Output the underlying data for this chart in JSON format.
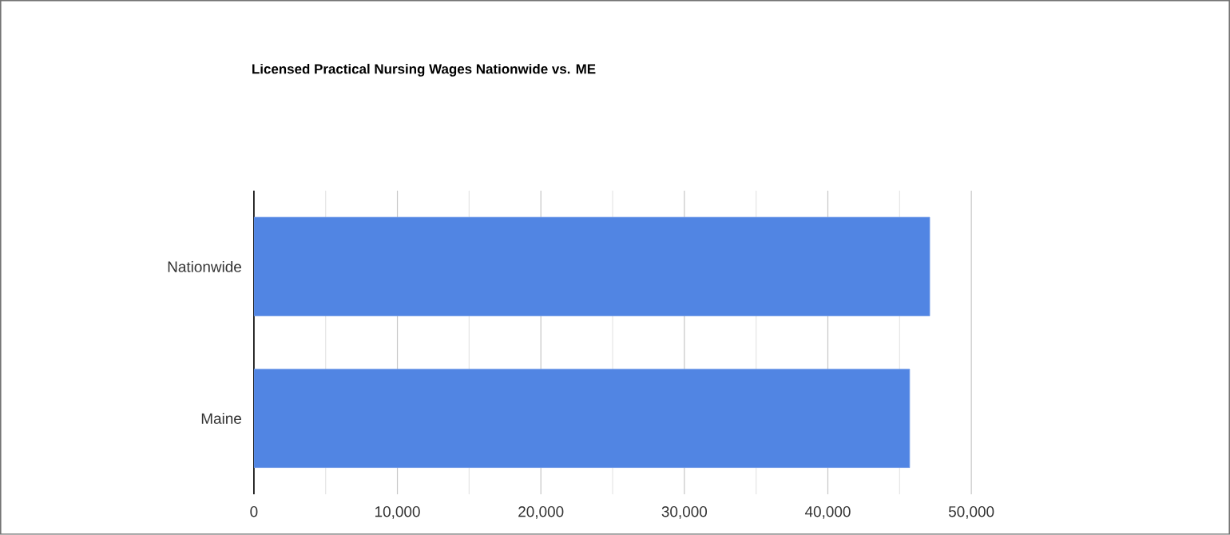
{
  "chart_data": {
    "type": "bar",
    "orientation": "horizontal",
    "title": "Licensed Practical Nursing Wages Nationwide vs. ME",
    "categories": [
      "Nationwide",
      "Maine"
    ],
    "values": [
      47100,
      45700
    ],
    "color": "#5185e3",
    "xlim": [
      0,
      50000
    ],
    "xticks": [
      0,
      {
        "value": 5000,
        "label": null
      },
      {
        "value": 10000,
        "label": "10,000"
      },
      {
        "value": 15000,
        "label": null
      },
      {
        "value": 20000,
        "label": "20,000"
      },
      {
        "value": 25000,
        "label": null
      },
      {
        "value": 30000,
        "label": "30,000"
      },
      {
        "value": 35000,
        "label": null
      },
      {
        "value": 40000,
        "label": "40,000"
      },
      {
        "value": 45000,
        "label": null
      },
      {
        "value": 50000,
        "label": "50,000"
      }
    ],
    "grid": "x"
  }
}
